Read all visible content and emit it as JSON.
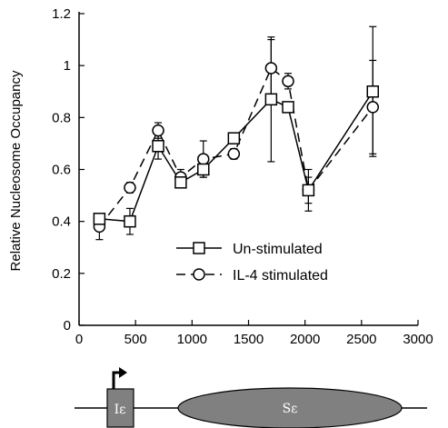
{
  "chart_data": {
    "type": "line",
    "title": "",
    "xlabel": "",
    "ylabel": "Relative Nucleosome Occupancy",
    "xlim": [
      0,
      3000
    ],
    "ylim": [
      0,
      1.2
    ],
    "x_ticks": [
      "0",
      "500",
      "1000",
      "1500",
      "2000",
      "2500",
      "3000"
    ],
    "y_ticks": [
      "0",
      "0.2",
      "0.4",
      "0.6",
      "0.8",
      "1",
      "1.2"
    ],
    "grid": false,
    "legend_position": "lower-right",
    "series": [
      {
        "name": "Un-stimulated",
        "marker": "square",
        "line_style": "solid",
        "x": [
          180,
          450,
          700,
          900,
          1100,
          1370,
          1700,
          1850,
          2030,
          2600
        ],
        "y": [
          0.41,
          0.4,
          0.69,
          0.55,
          0.6,
          0.72,
          0.87,
          0.84,
          0.52,
          0.9
        ],
        "err": [
          0.02,
          0.05,
          0.05,
          0.02,
          0.03,
          0.02,
          0.24,
          0.01,
          0.05,
          0.25
        ]
      },
      {
        "name": "IL-4 stimulated",
        "marker": "circle",
        "line_style": "dashed",
        "x": [
          180,
          450,
          700,
          900,
          1100,
          1370,
          1700,
          1850,
          2030,
          2600
        ],
        "y": [
          0.38,
          0.53,
          0.75,
          0.57,
          0.64,
          0.66,
          0.99,
          0.94,
          0.52,
          0.84
        ],
        "err": [
          0.05,
          0.02,
          0.03,
          0.03,
          0.07,
          0.02,
          0.11,
          0.03,
          0.08,
          0.18
        ]
      }
    ]
  },
  "gene_diagram": {
    "promoter_label": "Iε",
    "region_label": "Sε"
  }
}
